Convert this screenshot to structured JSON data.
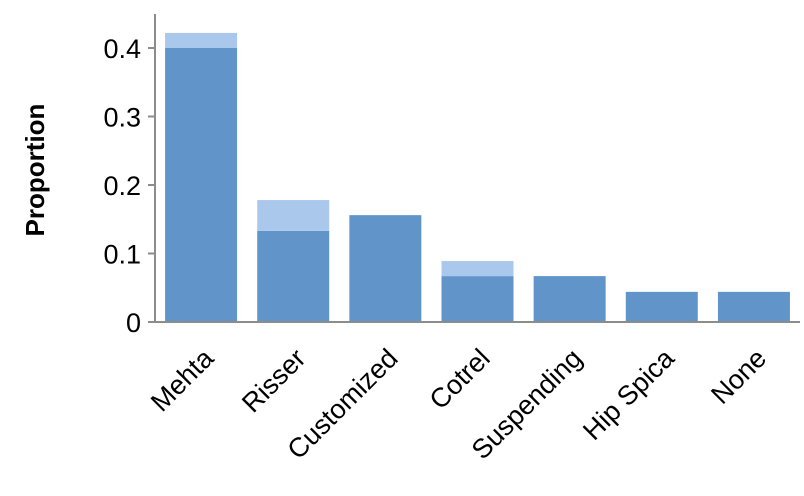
{
  "chart_data": {
    "type": "bar",
    "categories": [
      "Mehta",
      "Risser",
      "Customized",
      "Cotrel",
      "Suspending",
      "Hip Spica",
      "None"
    ],
    "series": [
      {
        "values": [
          0.4,
          0.133,
          0.156,
          0.067,
          0.067,
          0.044,
          0.044
        ]
      },
      {
        "values": [
          0.022,
          0.045,
          0.0,
          0.022,
          0.0,
          0.0,
          0.0
        ]
      }
    ],
    "stacked": true,
    "ylabel": "Proportion",
    "xlabel": "",
    "ylim": [
      0,
      0.44
    ],
    "yticks": [
      0,
      0.1,
      0.2,
      0.3,
      0.4
    ],
    "ytick_labels": [
      "0",
      "0.1",
      "0.2",
      "0.3",
      "0.4"
    ],
    "grid": false,
    "legend": "none",
    "colors": [
      "#6195ca",
      "#a9c8eb"
    ],
    "axis_color": "#8c8c8c"
  }
}
